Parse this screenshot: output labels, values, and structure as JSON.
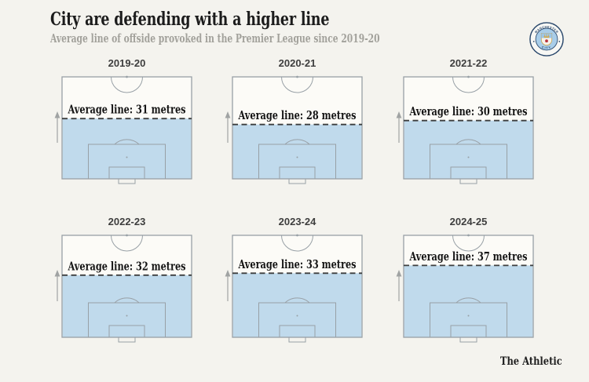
{
  "header": {
    "title": "City are defending with a higher line",
    "subtitle": "Average line of offside provoked in the Premier League since 2019-20"
  },
  "badge": {
    "team": "Manchester City",
    "ring_top": "MANCHESTER",
    "ring_bottom": "CITY"
  },
  "footer": {
    "brand": "The Athletic"
  },
  "chart_data": {
    "type": "small-multiples-pitch-map",
    "title": "City are defending with a higher line",
    "subtitle": "Average line of offside provoked in the Premier League since 2019-20",
    "unit": "metres",
    "half_pitch_length_m": 52.5,
    "legend": "Shaded area = territory behind the average offside line; dashed line = average line height from own goal line; arrow = direction of play up the pitch",
    "seasons": [
      {
        "label": "2019-20",
        "metres": 31,
        "annotation": "Average line: 31 metres"
      },
      {
        "label": "2020-21",
        "metres": 28,
        "annotation": "Average line: 28 metres"
      },
      {
        "label": "2021-22",
        "metres": 30,
        "annotation": "Average line: 30 metres"
      },
      {
        "label": "2022-23",
        "metres": 32,
        "annotation": "Average line: 32 metres"
      },
      {
        "label": "2023-24",
        "metres": 33,
        "annotation": "Average line: 33 metres"
      },
      {
        "label": "2024-25",
        "metres": 37,
        "annotation": "Average line: 37 metres"
      }
    ],
    "colors": {
      "background": "#f4f3ee",
      "pitch_fill": "#fcfbf7",
      "area_below_line": "#c0daec",
      "pitch_lines": "#98a0a6",
      "dashed_line": "#3d3e3e",
      "title_text": "#1c1c1c",
      "subtitle_text": "#a2a19b"
    },
    "layout": {
      "rows": 2,
      "cols": 3,
      "legend_position": "none",
      "grid": false
    }
  }
}
